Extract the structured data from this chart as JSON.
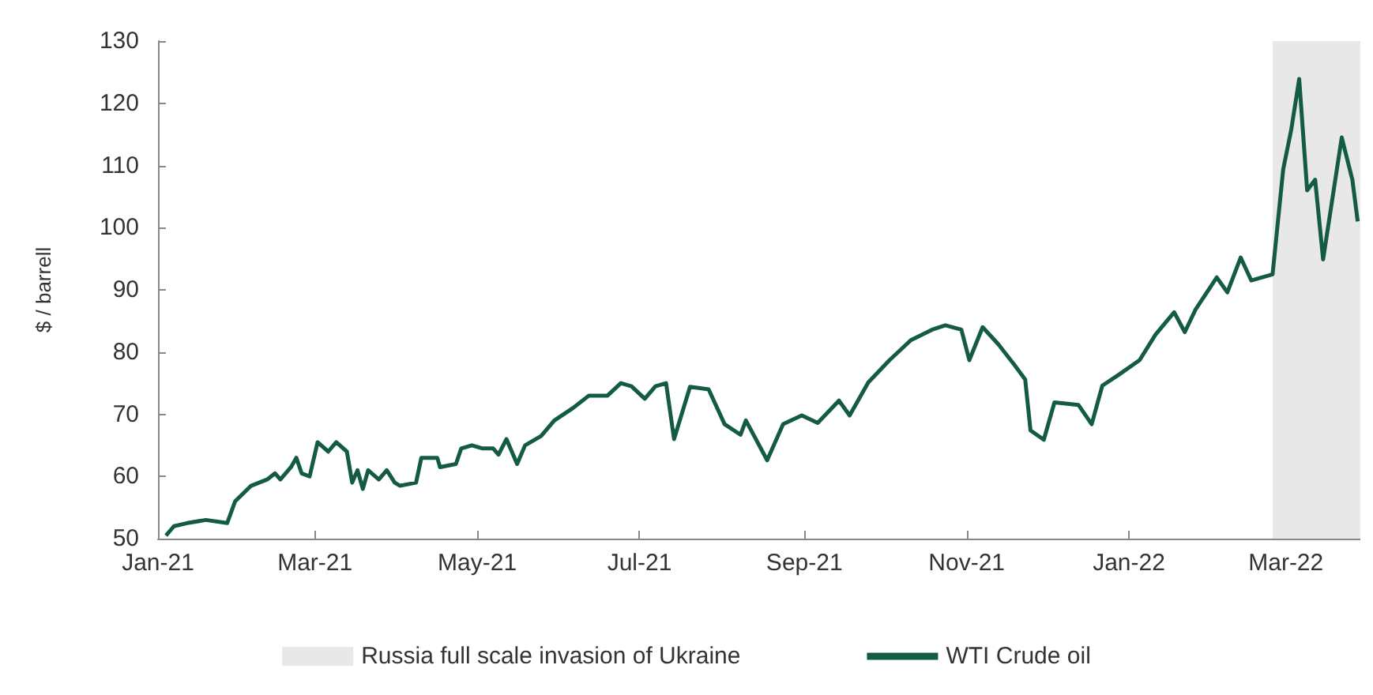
{
  "chart_data": {
    "type": "line",
    "ylabel": "$ / barrell",
    "x": [
      "2021-01-04",
      "2021-01-07",
      "2021-01-12",
      "2021-01-19",
      "2021-01-27",
      "2021-01-30",
      "2021-02-05",
      "2021-02-11",
      "2021-02-14",
      "2021-02-16",
      "2021-02-20",
      "2021-02-22",
      "2021-02-24",
      "2021-02-27",
      "2021-03-02",
      "2021-03-06",
      "2021-03-09",
      "2021-03-13",
      "2021-03-15",
      "2021-03-17",
      "2021-03-19",
      "2021-03-21",
      "2021-03-25",
      "2021-03-28",
      "2021-03-31",
      "2021-04-02",
      "2021-04-08",
      "2021-04-10",
      "2021-04-16",
      "2021-04-17",
      "2021-04-23",
      "2021-04-25",
      "2021-04-29",
      "2021-05-03",
      "2021-05-07",
      "2021-05-09",
      "2021-05-12",
      "2021-05-16",
      "2021-05-19",
      "2021-05-25",
      "2021-05-30",
      "2021-06-06",
      "2021-06-12",
      "2021-06-19",
      "2021-06-24",
      "2021-06-28",
      "2021-07-03",
      "2021-07-07",
      "2021-07-11",
      "2021-07-14",
      "2021-07-20",
      "2021-07-27",
      "2021-08-02",
      "2021-08-08",
      "2021-08-10",
      "2021-08-18",
      "2021-08-24",
      "2021-08-31",
      "2021-09-06",
      "2021-09-14",
      "2021-09-18",
      "2021-09-25",
      "2021-10-03",
      "2021-10-11",
      "2021-10-19",
      "2021-10-24",
      "2021-10-30",
      "2021-11-02",
      "2021-11-07",
      "2021-11-13",
      "2021-11-19",
      "2021-11-23",
      "2021-11-25",
      "2021-11-30",
      "2021-12-04",
      "2021-12-13",
      "2021-12-18",
      "2021-12-22",
      "2021-12-28",
      "2022-01-05",
      "2022-01-11",
      "2022-01-18",
      "2022-01-22",
      "2022-01-26",
      "2022-02-03",
      "2022-02-07",
      "2022-02-12",
      "2022-02-16",
      "2022-02-24",
      "2022-02-28",
      "2022-03-03",
      "2022-03-06",
      "2022-03-09",
      "2022-03-12",
      "2022-03-15",
      "2022-03-22",
      "2022-03-26",
      "2022-03-28"
    ],
    "series": [
      {
        "name": "WTI Crude oil",
        "color": "#145c41",
        "values": [
          50.5,
          52,
          52.5,
          53,
          52.5,
          56,
          58.5,
          59.5,
          60.5,
          59.5,
          61.5,
          63,
          60.5,
          60,
          65.5,
          64,
          65.5,
          64,
          59,
          61,
          58,
          61,
          59.5,
          61,
          59,
          58.5,
          59,
          63,
          63,
          61.5,
          62,
          64.5,
          65,
          64.5,
          64.5,
          63.5,
          66,
          62,
          65,
          66.5,
          69,
          71,
          73,
          73,
          75,
          74.5,
          72.5,
          74.5,
          75,
          66,
          74.4,
          74,
          68.4,
          66.7,
          69,
          62.6,
          68.4,
          69.8,
          68.6,
          72.2,
          69.8,
          75.1,
          78.7,
          81.9,
          83.6,
          84.3,
          83.6,
          78.7,
          84,
          81.2,
          77.9,
          75.6,
          67.4,
          65.9,
          71.9,
          71.5,
          68.4,
          74.6,
          76.3,
          78.7,
          82.8,
          86.4,
          83.2,
          86.8,
          92,
          89.6,
          95.2,
          91.5,
          92.5,
          109.4,
          115.7,
          123.9,
          106,
          107.7,
          94.9,
          114.5,
          107.7,
          101
        ]
      }
    ],
    "xlim": [
      "2021-01-01",
      "2022-03-29"
    ],
    "xticks": [
      {
        "value": "2021-01",
        "label": "Jan-21"
      },
      {
        "value": "2021-03",
        "label": "Mar-21"
      },
      {
        "value": "2021-05",
        "label": "May-21"
      },
      {
        "value": "2021-07",
        "label": "Jul-21"
      },
      {
        "value": "2021-09",
        "label": "Sep-21"
      },
      {
        "value": "2021-11",
        "label": "Nov-21"
      },
      {
        "value": "2022-01",
        "label": "Jan-22"
      },
      {
        "value": "2022-03",
        "label": "Mar-22"
      }
    ],
    "ylim": [
      50,
      130
    ],
    "yticks": [
      50,
      60,
      70,
      80,
      90,
      100,
      110,
      120,
      130
    ],
    "bands": [
      {
        "axis": "x",
        "from": "2022-02-24",
        "to": "2022-03-29",
        "label": "Russia full scale invasion of Ukraine",
        "color": "#e8e8e8"
      }
    ],
    "grid": false,
    "legend": "bottom",
    "marker": "none",
    "line_style": "solid"
  }
}
